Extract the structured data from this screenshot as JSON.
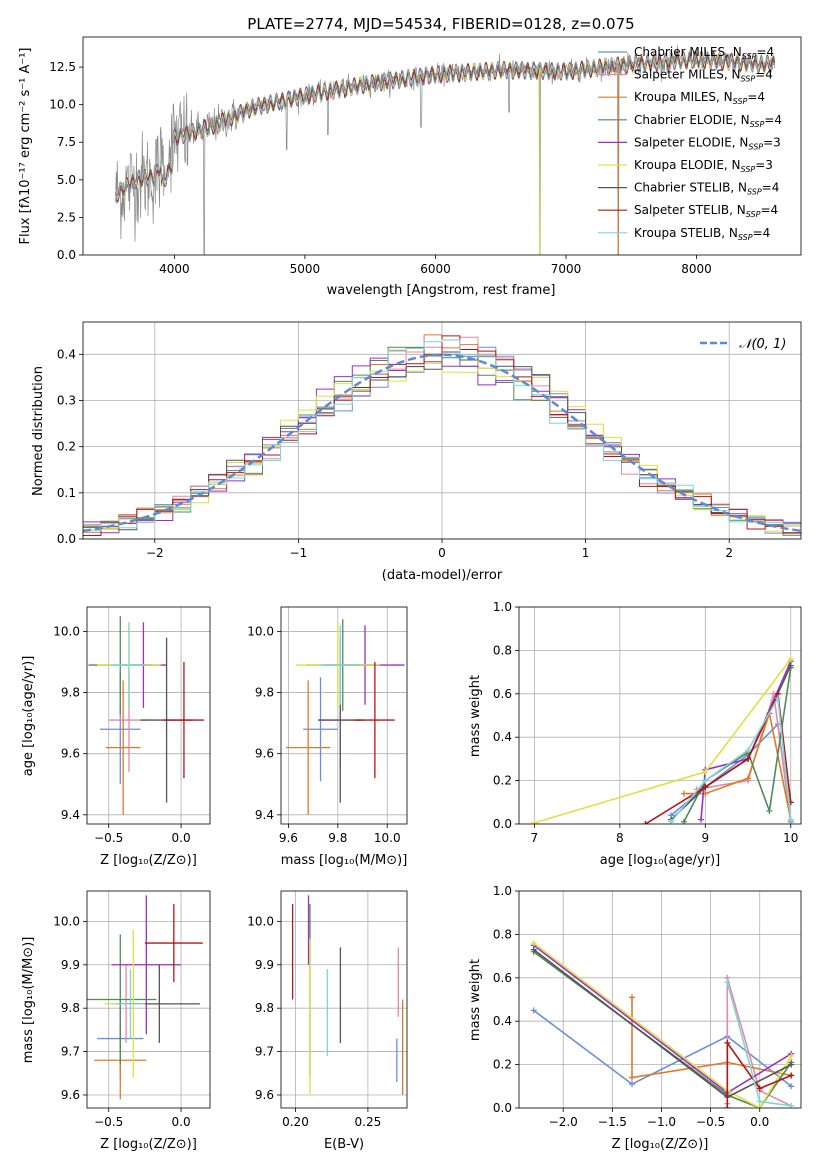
{
  "figure": {
    "title": "PLATE=2774, MJD=54534, FIBERID=0128, z=0.075"
  },
  "models": [
    {
      "key": "chabrier_miles",
      "label": "Chabrier MILES, N",
      "sub": "SSP",
      "tail": "=4",
      "color": "#6a8fd8"
    },
    {
      "key": "salpeter_miles",
      "label": "Salpeter MILES, N",
      "sub": "SSP",
      "tail": "=4",
      "color": "#e28aa8"
    },
    {
      "key": "kroupa_miles",
      "label": "Kroupa MILES, N",
      "sub": "SSP",
      "tail": "=4",
      "color": "#e07a2a"
    },
    {
      "key": "chabrier_elodie",
      "label": "Chabrier ELODIE, N",
      "sub": "SSP",
      "tail": "=4",
      "color": "#4f8a5b"
    },
    {
      "key": "salpeter_elodie",
      "label": "Salpeter ELODIE, N",
      "sub": "SSP",
      "tail": "=3",
      "color": "#9b30c8"
    },
    {
      "key": "kroupa_elodie",
      "label": "Kroupa ELODIE, N",
      "sub": "SSP",
      "tail": "=3",
      "color": "#e0e040"
    },
    {
      "key": "chabrier_stelib",
      "label": "Chabrier STELIB, N",
      "sub": "SSP",
      "tail": "=4",
      "color": "#555555"
    },
    {
      "key": "salpeter_stelib",
      "label": "Salpeter STELIB, N",
      "sub": "SSP",
      "tail": "=4",
      "color": "#b01818"
    },
    {
      "key": "kroupa_stelib",
      "label": "Kroupa STELIB, N",
      "sub": "SSP",
      "tail": "=4",
      "color": "#7fd6d6"
    }
  ],
  "chart_data": [
    {
      "id": "spectrum",
      "type": "line",
      "xlabel": "wavelength [Angstrom, rest frame]",
      "ylabel": "Flux [fλ10⁻¹⁷ erg cm⁻² s⁻¹ A⁻¹]",
      "xlim": [
        3300,
        8800
      ],
      "ylim": [
        0,
        14.5
      ],
      "xticks": [
        "4000",
        "5000",
        "6000",
        "7000",
        "8000"
      ],
      "yticks": [
        "0.0",
        "2.5",
        "5.0",
        "7.5",
        "10.0",
        "12.5"
      ],
      "data_color": "#888888",
      "continuum": [
        [
          3550,
          4.0
        ],
        [
          3700,
          5.0
        ],
        [
          3850,
          5.2
        ],
        [
          4000,
          7.8
        ],
        [
          4300,
          8.6
        ],
        [
          4600,
          9.8
        ],
        [
          5000,
          10.6
        ],
        [
          5500,
          11.4
        ],
        [
          6000,
          12.0
        ],
        [
          6500,
          12.3
        ],
        [
          7000,
          12.2
        ],
        [
          7500,
          12.7
        ],
        [
          8000,
          13.0
        ],
        [
          8500,
          12.7
        ]
      ],
      "absorption_dips": [
        [
          3934,
          5.0
        ],
        [
          4101,
          6.0
        ],
        [
          4227,
          0.0
        ],
        [
          4861,
          7.0
        ],
        [
          5175,
          8.0
        ],
        [
          5890,
          8.5
        ],
        [
          6563,
          9.5
        ],
        [
          6800,
          0.0
        ],
        [
          7400,
          0.0
        ]
      ]
    },
    {
      "id": "residuals",
      "type": "histogram",
      "xlabel": "(data-model)/error",
      "ylabel": "Normed distribution",
      "xlim": [
        -2.5,
        2.5
      ],
      "ylim": [
        0,
        0.47
      ],
      "xticks": [
        "−2",
        "−1",
        "0",
        "1",
        "2"
      ],
      "yticks": [
        "0.0",
        "0.1",
        "0.2",
        "0.3",
        "0.4"
      ],
      "bin_width": 0.125,
      "legend": "𝒩(0, 1)",
      "gaussian": {
        "mu": 0,
        "sigma": 1,
        "color": "#5b8bd6"
      }
    },
    {
      "id": "age_vs_Z",
      "type": "scatter",
      "xlabel": "Z [log₁₀(Z/Z⊙)]",
      "ylabel": "age  [log₁₀(age/yr)]",
      "xlim": [
        -0.65,
        0.2
      ],
      "ylim": [
        9.37,
        10.08
      ],
      "xticks": [
        -0.5,
        0.0
      ],
      "yticks": [
        9.4,
        9.6,
        9.8,
        10.0
      ],
      "xticklabels": [
        "−0.5",
        "0.0"
      ],
      "yticklabels": [
        "9.4",
        "9.6",
        "9.8",
        "10.0"
      ],
      "points": [
        {
          "x": -0.42,
          "y": 9.68,
          "xerr": 0.14,
          "yerr": 0.18,
          "model": 0
        },
        {
          "x": -0.36,
          "y": 9.71,
          "xerr": 0.14,
          "yerr": 0.17,
          "model": 1
        },
        {
          "x": -0.4,
          "y": 9.62,
          "xerr": 0.12,
          "yerr": 0.22,
          "model": 2
        },
        {
          "x": -0.42,
          "y": 9.89,
          "xerr": 0.22,
          "yerr": 0.16,
          "model": 3
        },
        {
          "x": -0.26,
          "y": 9.89,
          "xerr": 0.16,
          "yerr": 0.14,
          "model": 4
        },
        {
          "x": -0.36,
          "y": 9.89,
          "xerr": 0.22,
          "yerr": 0.14,
          "model": 5
        },
        {
          "x": -0.1,
          "y": 9.71,
          "xerr": 0.18,
          "yerr": 0.27,
          "model": 6
        },
        {
          "x": 0.02,
          "y": 9.71,
          "xerr": 0.14,
          "yerr": 0.19,
          "model": 7
        },
        {
          "x": -0.36,
          "y": 9.89,
          "xerr": 0.12,
          "yerr": 0.14,
          "model": 8
        }
      ]
    },
    {
      "id": "age_vs_mass",
      "type": "scatter",
      "xlabel": "mass [log₁₀(M/M⊙)]",
      "ylabel": "",
      "xlim": [
        9.57,
        10.08
      ],
      "ylim": [
        9.37,
        10.08
      ],
      "xticks": [
        9.6,
        9.8,
        10.0
      ],
      "yticks": [
        9.4,
        9.6,
        9.8,
        10.0
      ],
      "xticklabels": [
        "9.6",
        "9.8",
        "10.0"
      ],
      "yticklabels": [
        "9.4",
        "9.6",
        "9.8",
        "10.0"
      ],
      "points": [
        {
          "x": 9.73,
          "y": 9.68,
          "xerr": 0.07,
          "yerr": 0.17,
          "model": 0
        },
        {
          "x": 9.81,
          "y": 9.71,
          "xerr": 0.09,
          "yerr": 0.16,
          "model": 1
        },
        {
          "x": 9.68,
          "y": 9.62,
          "xerr": 0.09,
          "yerr": 0.22,
          "model": 2
        },
        {
          "x": 9.82,
          "y": 9.89,
          "xerr": 0.15,
          "yerr": 0.15,
          "model": 3
        },
        {
          "x": 9.91,
          "y": 9.89,
          "xerr": 0.16,
          "yerr": 0.13,
          "model": 4
        },
        {
          "x": 9.8,
          "y": 9.89,
          "xerr": 0.17,
          "yerr": 0.14,
          "model": 5
        },
        {
          "x": 9.81,
          "y": 9.71,
          "xerr": 0.09,
          "yerr": 0.27,
          "model": 6
        },
        {
          "x": 9.95,
          "y": 9.71,
          "xerr": 0.08,
          "yerr": 0.19,
          "model": 7
        },
        {
          "x": 9.81,
          "y": 9.89,
          "xerr": 0.08,
          "yerr": 0.13,
          "model": 8
        }
      ]
    },
    {
      "id": "mass_weight_vs_age",
      "type": "line",
      "xlabel": "age  [log₁₀(age/yr)]",
      "ylabel": "mass weight",
      "xlim": [
        6.82,
        10.12
      ],
      "ylim": [
        0,
        1.0
      ],
      "xticks": [
        7,
        8,
        9,
        10
      ],
      "yticks": [
        0,
        0.2,
        0.4,
        0.6,
        0.8,
        1.0
      ],
      "xticklabels": [
        "7",
        "8",
        "9",
        "10"
      ],
      "yticklabels": [
        "0.0",
        "0.2",
        "0.4",
        "0.6",
        "0.8",
        "1.0"
      ],
      "series": [
        {
          "model": 0,
          "points": [
            [
              8.6,
              0.04
            ],
            [
              9.0,
              0.17
            ],
            [
              9.5,
              0.32
            ],
            [
              9.85,
              0.46
            ],
            [
              10.0,
              0.01
            ]
          ]
        },
        {
          "model": 1,
          "points": [
            [
              8.9,
              0.16
            ],
            [
              9.5,
              0.2
            ],
            [
              9.8,
              0.6
            ],
            [
              10.0,
              0.02
            ]
          ]
        },
        {
          "model": 2,
          "points": [
            [
              8.75,
              0.14
            ],
            [
              9.0,
              0.14
            ],
            [
              9.5,
              0.21
            ],
            [
              9.75,
              0.51
            ],
            [
              10.0,
              0.02
            ]
          ]
        },
        {
          "model": 3,
          "points": [
            [
              8.75,
              0.01
            ],
            [
              9.0,
              0.2
            ],
            [
              9.5,
              0.33
            ],
            [
              9.75,
              0.06
            ],
            [
              10.0,
              0.72
            ]
          ]
        },
        {
          "model": 4,
          "points": [
            [
              8.95,
              0.02
            ],
            [
              9.0,
              0.25
            ],
            [
              9.5,
              0.3
            ],
            [
              10.0,
              0.75
            ]
          ]
        },
        {
          "model": 5,
          "points": [
            [
              7.0,
              0.005
            ],
            [
              9.0,
              0.24
            ],
            [
              10.0,
              0.76
            ]
          ]
        },
        {
          "model": 6,
          "points": [
            [
              8.6,
              0.02
            ],
            [
              9.0,
              0.17
            ],
            [
              9.5,
              0.3
            ],
            [
              10.0,
              0.73
            ]
          ]
        },
        {
          "model": 7,
          "points": [
            [
              8.3,
              0.0
            ],
            [
              9.0,
              0.17
            ],
            [
              9.5,
              0.3
            ],
            [
              9.85,
              0.6
            ],
            [
              10.0,
              0.1
            ]
          ]
        },
        {
          "model": 8,
          "points": [
            [
              8.6,
              0.01
            ],
            [
              9.0,
              0.2
            ],
            [
              9.5,
              0.34
            ],
            [
              9.85,
              0.58
            ],
            [
              10.0,
              0.02
            ]
          ]
        }
      ]
    },
    {
      "id": "mass_vs_Z",
      "type": "scatter",
      "xlabel": "Z [log₁₀(Z/Z⊙)]",
      "ylabel": "mass [log₁₀(M/M⊙)]",
      "xlim": [
        -0.65,
        0.2
      ],
      "ylim": [
        9.57,
        10.07
      ],
      "xticks": [
        -0.5,
        0.0
      ],
      "yticks": [
        9.6,
        9.7,
        9.8,
        9.9,
        10.0
      ],
      "xticklabels": [
        "−0.5",
        "0.0"
      ],
      "yticklabels": [
        "9.6",
        "9.7",
        "9.8",
        "9.9",
        "10.0"
      ],
      "points": [
        {
          "x": -0.42,
          "y": 9.73,
          "xerr": 0.16,
          "yerr": 0.09,
          "model": 0
        },
        {
          "x": -0.38,
          "y": 9.81,
          "xerr": 0.12,
          "yerr": 0.09,
          "model": 1
        },
        {
          "x": -0.42,
          "y": 9.68,
          "xerr": 0.18,
          "yerr": 0.09,
          "model": 2
        },
        {
          "x": -0.42,
          "y": 9.82,
          "xerr": 0.25,
          "yerr": 0.15,
          "model": 3
        },
        {
          "x": -0.24,
          "y": 9.9,
          "xerr": 0.24,
          "yerr": 0.16,
          "model": 4
        },
        {
          "x": -0.33,
          "y": 9.81,
          "xerr": 0.2,
          "yerr": 0.17,
          "model": 5
        },
        {
          "x": -0.15,
          "y": 9.81,
          "xerr": 0.28,
          "yerr": 0.09,
          "model": 6
        },
        {
          "x": -0.05,
          "y": 9.95,
          "xerr": 0.2,
          "yerr": 0.09,
          "model": 7
        },
        {
          "x": -0.35,
          "y": 9.81,
          "xerr": 0.1,
          "yerr": 0.08,
          "model": 8
        }
      ]
    },
    {
      "id": "mass_vs_ebv",
      "type": "scatter",
      "xlabel": "E(B-V)",
      "ylabel": "",
      "xlim": [
        0.19,
        0.277
      ],
      "ylim": [
        9.57,
        10.07
      ],
      "xticks": [
        0.2,
        0.25
      ],
      "yticks": [
        9.6,
        9.7,
        9.8,
        9.9,
        10.0
      ],
      "xticklabels": [
        "0.20",
        "0.25"
      ],
      "yticklabels": [
        "9.6",
        "9.7",
        "9.8",
        "9.9",
        "10.0"
      ],
      "points": [
        {
          "x": 0.27,
          "y": 9.68,
          "xerr": 0,
          "yerr": 0.05,
          "model": 0
        },
        {
          "x": 0.271,
          "y": 9.86,
          "xerr": 0,
          "yerr": 0.08,
          "model": 1
        },
        {
          "x": 0.274,
          "y": 9.71,
          "xerr": 0,
          "yerr": 0.11,
          "model": 2
        },
        {
          "x": 0.21,
          "y": 9.84,
          "xerr": 0,
          "yerr": 0.2,
          "model": 3
        },
        {
          "x": 0.209,
          "y": 9.98,
          "xerr": 0,
          "yerr": 0.08,
          "model": 4
        },
        {
          "x": 0.21,
          "y": 9.78,
          "xerr": 0,
          "yerr": 0.18,
          "model": 5
        },
        {
          "x": 0.231,
          "y": 9.83,
          "xerr": 0,
          "yerr": 0.11,
          "model": 6
        },
        {
          "x": 0.198,
          "y": 9.93,
          "xerr": 0,
          "yerr": 0.11,
          "model": 7
        },
        {
          "x": 0.222,
          "y": 9.79,
          "xerr": 0,
          "yerr": 0.1,
          "model": 8
        }
      ]
    },
    {
      "id": "mass_weight_vs_Z",
      "type": "line",
      "xlabel": "Z [log₁₀(Z/Z⊙)]",
      "ylabel": "mass weight",
      "xlim": [
        -2.45,
        0.42
      ],
      "ylim": [
        0,
        1.0
      ],
      "xticks": [
        -2.0,
        -1.5,
        -1.0,
        -0.5,
        0.0
      ],
      "yticks": [
        0,
        0.2,
        0.4,
        0.6,
        0.8,
        1.0
      ],
      "xticklabels": [
        "−2.0",
        "−1.5",
        "−1.0",
        "−0.5",
        "0.0"
      ],
      "yticklabels": [
        "0.0",
        "0.2",
        "0.4",
        "0.6",
        "0.8",
        "1.0"
      ],
      "series": [
        {
          "model": 0,
          "points": [
            [
              -2.3,
              0.45
            ],
            [
              -1.3,
              0.11
            ],
            [
              -0.33,
              0.33
            ],
            [
              0.32,
              0.1
            ]
          ]
        },
        {
          "model": 1,
          "points": [
            [
              -0.33,
              0.02
            ],
            [
              -0.33,
              0.6
            ],
            [
              0.0,
              0.08
            ],
            [
              0.32,
              0.01
            ]
          ]
        },
        {
          "model": 2,
          "points": [
            [
              -1.3,
              0.51
            ],
            [
              -1.3,
              0.14
            ],
            [
              -0.33,
              0.21
            ],
            [
              0.32,
              0.15
            ]
          ]
        },
        {
          "model": 3,
          "points": [
            [
              -2.3,
              0.72
            ],
            [
              -0.33,
              0.06
            ],
            [
              0.0,
              0.0
            ],
            [
              0.32,
              0.21
            ]
          ]
        },
        {
          "model": 4,
          "points": [
            [
              -2.3,
              0.75
            ],
            [
              -0.33,
              0.07
            ],
            [
              0.32,
              0.25
            ]
          ]
        },
        {
          "model": 5,
          "points": [
            [
              -2.3,
              0.76
            ],
            [
              -0.33,
              0.08
            ],
            [
              0.0,
              0.0
            ],
            [
              0.32,
              0.24
            ]
          ]
        },
        {
          "model": 6,
          "points": [
            [
              -2.3,
              0.73
            ],
            [
              -0.33,
              0.05
            ],
            [
              0.32,
              0.2
            ]
          ]
        },
        {
          "model": 7,
          "points": [
            [
              -0.33,
              0.0
            ],
            [
              -0.33,
              0.3
            ],
            [
              0.0,
              0.09
            ],
            [
              0.32,
              0.15
            ]
          ]
        },
        {
          "model": 8,
          "points": [
            [
              -0.33,
              0.58
            ],
            [
              0.0,
              0.03
            ],
            [
              0.32,
              0.01
            ]
          ]
        }
      ]
    }
  ]
}
